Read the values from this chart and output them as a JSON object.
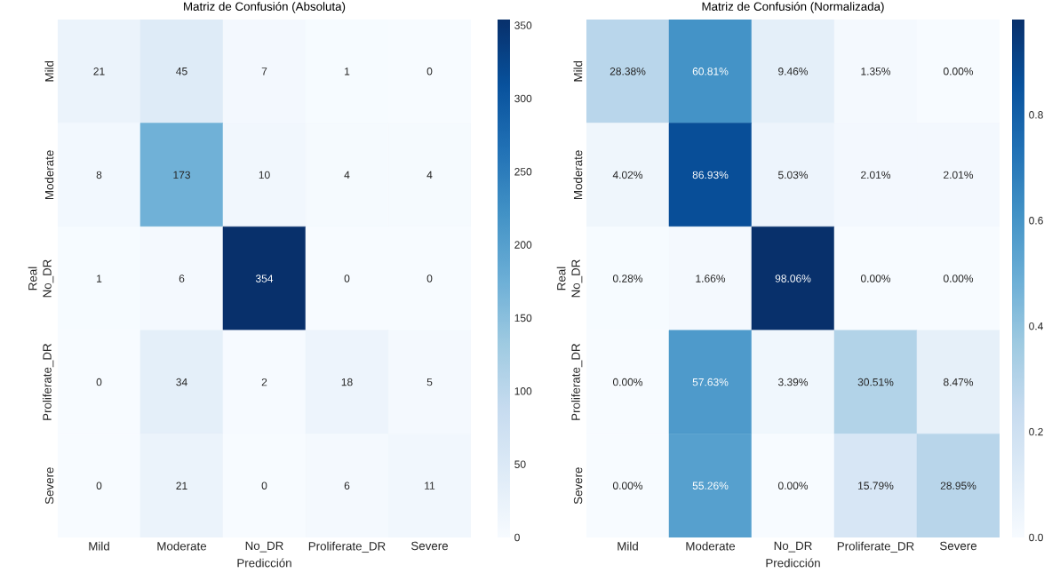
{
  "chart_data": [
    {
      "type": "heatmap",
      "title": "Matriz de Confusión (Absoluta)",
      "xlabel": "Predicción",
      "ylabel": "Real",
      "categories": [
        "Mild",
        "Moderate",
        "No_DR",
        "Proliferate_DR",
        "Severe"
      ],
      "y_categories": [
        "Mild",
        "Moderate",
        "No_DR",
        "Proliferate_DR",
        "Severe"
      ],
      "cells": [
        [
          21,
          45,
          7,
          1,
          0
        ],
        [
          8,
          173,
          10,
          4,
          4
        ],
        [
          1,
          6,
          354,
          0,
          0
        ],
        [
          0,
          34,
          2,
          18,
          5
        ],
        [
          0,
          21,
          0,
          6,
          11
        ]
      ],
      "data_labels": true,
      "clim": [
        0,
        354
      ],
      "cticks": [
        0,
        50,
        100,
        150,
        200,
        250,
        300,
        350
      ]
    },
    {
      "type": "heatmap",
      "title": "Matriz de Confusión (Normalizada)",
      "xlabel": "Predicción",
      "ylabel": "Real",
      "categories": [
        "Mild",
        "Moderate",
        "No_DR",
        "Proliferate_DR",
        "Severe"
      ],
      "y_categories": [
        "Mild",
        "Moderate",
        "No_DR",
        "Proliferate_DR",
        "Severe"
      ],
      "cells": [
        [
          0.2838,
          0.6081,
          0.0946,
          0.0135,
          0.0
        ],
        [
          0.0402,
          0.8693,
          0.0503,
          0.0201,
          0.0201
        ],
        [
          0.0028,
          0.0166,
          0.9806,
          0.0,
          0.0
        ],
        [
          0.0,
          0.5763,
          0.0339,
          0.3051,
          0.0847
        ],
        [
          0.0,
          0.5526,
          0.0,
          0.1579,
          0.2895
        ]
      ],
      "cell_labels": [
        [
          "28.38%",
          "60.81%",
          "9.46%",
          "1.35%",
          "0.00%"
        ],
        [
          "4.02%",
          "86.93%",
          "5.03%",
          "2.01%",
          "2.01%"
        ],
        [
          "0.28%",
          "1.66%",
          "98.06%",
          "0.00%",
          "0.00%"
        ],
        [
          "0.00%",
          "57.63%",
          "3.39%",
          "30.51%",
          "8.47%"
        ],
        [
          "0.00%",
          "55.26%",
          "0.00%",
          "15.79%",
          "28.95%"
        ]
      ],
      "clim": [
        0,
        0.9806
      ],
      "cticks": [
        {
          "value": 0,
          "label": "0.0"
        },
        {
          "value": 0.2,
          "label": "0.2"
        },
        {
          "value": 0.4,
          "label": "0.4"
        },
        {
          "value": 0.6,
          "label": "0.6"
        },
        {
          "value": 0.8,
          "label": "0.8"
        }
      ]
    }
  ]
}
